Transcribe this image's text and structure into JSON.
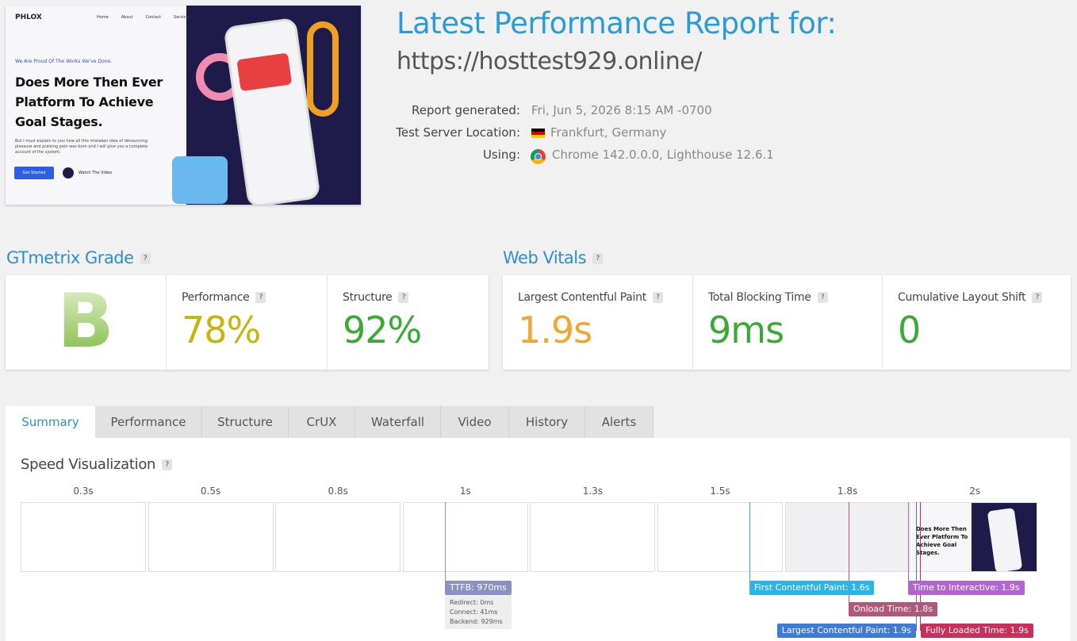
{
  "header": {
    "title": "Latest Performance Report for:",
    "url": "https://hosttest929.online/",
    "details": [
      {
        "label": "Report generated:",
        "value": "Fri, Jun 5, 2026 8:15 AM -0700"
      },
      {
        "label": "Test Server Location:",
        "value": "Frankfurt, Germany"
      },
      {
        "label": "Using:",
        "value": "Chrome 142.0.0.0, Lighthouse 12.6.1"
      }
    ]
  },
  "screenshot": {
    "logo": "PHLOX",
    "nav": [
      "Home",
      "About",
      "Contact",
      "Services"
    ],
    "tagline": "We Are Proud Of The Works We've Done.",
    "headline": "Does More Then Ever Platform To Achieve Goal Stages.",
    "body": "But I must explain to you how all this mistaken idea of denouncing pleasure and praising pain was born and I will give you a complete account of the system.",
    "buttons": [
      "Get Started",
      "Watch The Video"
    ]
  },
  "help": "?",
  "grade": {
    "title": "GTmetrix Grade",
    "grade": "B",
    "metrics": [
      {
        "label": "Performance",
        "value": "78%"
      },
      {
        "label": "Structure",
        "value": "92%"
      }
    ]
  },
  "web_vitals": {
    "title": "Web Vitals",
    "metrics": [
      {
        "label": "Largest Contentful Paint",
        "value": "1.9s"
      },
      {
        "label": "Total Blocking Time",
        "value": "9ms"
      },
      {
        "label": "Cumulative Layout Shift",
        "value": "0"
      }
    ]
  },
  "tabs": [
    "Summary",
    "Performance",
    "Structure",
    "CrUX",
    "Waterfall",
    "Video",
    "History",
    "Alerts"
  ],
  "speed_visualization": {
    "title": "Speed Visualization",
    "frames": [
      "0.3s",
      "0.5s",
      "0.8s",
      "1s",
      "1.3s",
      "1.5s",
      "1.8s",
      "2s"
    ],
    "markers": [
      {
        "label": "TTFB: 970ms"
      },
      {
        "label": "First Contentful Paint: 1.6s"
      },
      {
        "label": "Onload Time: 1.8s"
      },
      {
        "label": "Time to Interactive: 1.9s"
      },
      {
        "label": "Largest Contentful Paint: 1.9s"
      },
      {
        "label": "Fully Loaded Time: 1.9s"
      }
    ],
    "ttfb_details": [
      "Redirect: 0ms",
      "Connect: 41ms",
      "Backend: 929ms"
    ]
  }
}
